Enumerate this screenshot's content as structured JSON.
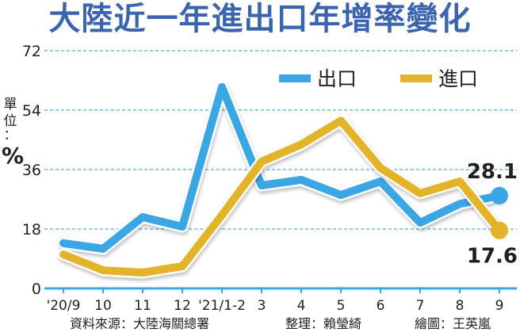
{
  "title": "大陸近一年進出口年增率變化",
  "unit": {
    "chars": [
      "單",
      "位",
      "："
    ],
    "symbol": "%"
  },
  "credits": {
    "source": "資料來源：大陸海關總署",
    "compiled": "整理：賴瑩綺",
    "graphic": "繪圖：王英嵐"
  },
  "colors": {
    "title": "#3a64ae",
    "export": "#3aa6e4",
    "import": "#e3b32a",
    "grid": "#5aa9dc",
    "axis": "#3aa6e4",
    "text": "#231f20"
  },
  "chart_data": {
    "type": "line",
    "title": "大陸近一年進出口年增率變化",
    "xlabel": "",
    "ylabel": "單位：%",
    "categories": [
      "'20/9",
      "10",
      "11",
      "12",
      "'21/1-2",
      "3",
      "4",
      "5",
      "6",
      "7",
      "8",
      "9"
    ],
    "series": [
      {
        "name": "出口",
        "color": "#3aa6e4",
        "values": [
          13.7,
          12.0,
          21.6,
          18.7,
          61.0,
          31.2,
          32.9,
          28.3,
          32.4,
          19.9,
          25.6,
          28.1
        ]
      },
      {
        "name": "進口",
        "color": "#e3b32a",
        "values": [
          10.3,
          5.5,
          4.8,
          6.7,
          22.2,
          38.4,
          43.6,
          50.8,
          36.5,
          28.8,
          32.4,
          17.6
        ]
      }
    ],
    "yticks": [
      0,
      18,
      36,
      54,
      72
    ],
    "ylim": [
      0,
      72
    ],
    "grid": true,
    "legend_position": "top-right",
    "annotations": [
      {
        "series": "出口",
        "category": "9",
        "label": "28.1"
      },
      {
        "series": "進口",
        "category": "9",
        "label": "17.6"
      }
    ]
  }
}
